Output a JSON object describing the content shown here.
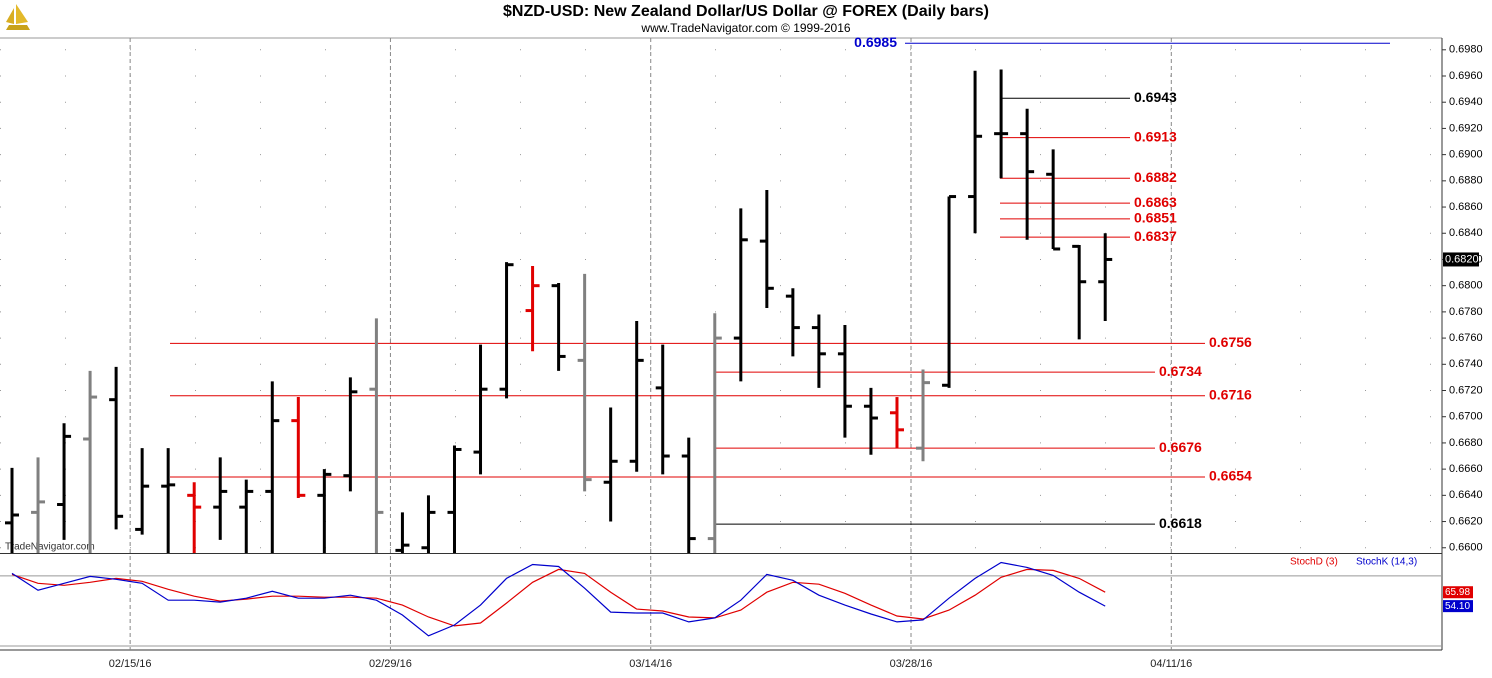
{
  "header": {
    "title": "$NZD-USD:  New Zealand Dollar/US Dollar @ FOREX  (Daily bars)",
    "subtitle": "www.TradeNavigator.com © 1999-2016",
    "watermark": "TradeNavigator.com"
  },
  "chart_data": [
    {
      "type": "ohlc",
      "xlim": [
        0,
        55.4
      ],
      "xticks": [
        {
          "value": 5,
          "label": "02/15/16"
        },
        {
          "value": 15,
          "label": "02/29/16"
        },
        {
          "value": 25,
          "label": "03/14/16"
        },
        {
          "value": 35,
          "label": "03/28/16"
        },
        {
          "value": 45,
          "label": "04/11/16"
        }
      ],
      "ylim": [
        0.6596,
        0.6989
      ],
      "yticks": [
        {
          "value": 0.66,
          "label": "0.6600"
        },
        {
          "value": 0.662,
          "label": "0.6620"
        },
        {
          "value": 0.664,
          "label": "0.6640"
        },
        {
          "value": 0.666,
          "label": "0.6660"
        },
        {
          "value": 0.668,
          "label": "0.6680"
        },
        {
          "value": 0.67,
          "label": "0.6700"
        },
        {
          "value": 0.672,
          "label": "0.6720"
        },
        {
          "value": 0.674,
          "label": "0.6740"
        },
        {
          "value": 0.676,
          "label": "0.6760"
        },
        {
          "value": 0.678,
          "label": "0.6780"
        },
        {
          "value": 0.68,
          "label": "0.6800"
        },
        {
          "value": 0.682,
          "label": "0.6820"
        },
        {
          "value": 0.684,
          "label": "0.6840"
        },
        {
          "value": 0.686,
          "label": "0.6860"
        },
        {
          "value": 0.688,
          "label": "0.6880"
        },
        {
          "value": 0.69,
          "label": "0.6900"
        },
        {
          "value": 0.692,
          "label": "0.6920"
        },
        {
          "value": 0.694,
          "label": "0.6940"
        },
        {
          "value": 0.696,
          "label": "0.6960"
        },
        {
          "value": 0.698,
          "label": "0.6980"
        }
      ],
      "grid": true,
      "open": [
        0.6619,
        0.6627,
        0.6633,
        0.6683,
        0.6713,
        0.6614,
        0.6647,
        0.664,
        0.6631,
        0.6631,
        0.6643,
        0.6697,
        0.664,
        0.6655,
        0.6721,
        0.6598,
        0.66,
        0.6627,
        0.6673,
        0.6721,
        0.6781,
        0.68,
        0.6743,
        0.665,
        0.6666,
        0.6722,
        0.667,
        0.6607,
        0.676,
        0.6834,
        0.6792,
        0.6768,
        0.6748,
        0.6708,
        0.6703,
        0.6676,
        0.6724,
        0.6868,
        0.6916,
        0.6916,
        0.6885,
        0.683,
        0.6803
      ],
      "high": [
        0.6661,
        0.6669,
        0.6695,
        0.6735,
        0.6738,
        0.6676,
        0.6676,
        0.665,
        0.6669,
        0.6652,
        0.6727,
        0.6715,
        0.666,
        0.673,
        0.6775,
        0.6627,
        0.664,
        0.6678,
        0.6755,
        0.6818,
        0.6815,
        0.6802,
        0.6809,
        0.6707,
        0.6773,
        0.6755,
        0.6684,
        0.6779,
        0.6859,
        0.6873,
        0.6798,
        0.6778,
        0.677,
        0.6722,
        0.6715,
        0.6736,
        0.6868,
        0.6964,
        0.6965,
        0.6935,
        0.6904,
        0.6831,
        0.684
      ],
      "low": [
        0.6596,
        0.6596,
        0.6606,
        0.6596,
        0.6614,
        0.661,
        0.6596,
        0.6596,
        0.6606,
        0.6596,
        0.6596,
        0.6638,
        0.6596,
        0.6643,
        0.6596,
        0.6596,
        0.6596,
        0.6596,
        0.6656,
        0.6714,
        0.675,
        0.6735,
        0.6643,
        0.662,
        0.6658,
        0.6656,
        0.6596,
        0.6596,
        0.6727,
        0.6783,
        0.6746,
        0.6722,
        0.6684,
        0.6671,
        0.6676,
        0.6666,
        0.6722,
        0.684,
        0.6882,
        0.6835,
        0.6828,
        0.6759,
        0.6773
      ],
      "close": [
        0.6625,
        0.6635,
        0.6685,
        0.6715,
        0.6624,
        0.6647,
        0.6648,
        0.6631,
        0.6643,
        0.6643,
        0.6697,
        0.664,
        0.6656,
        0.6719,
        0.6627,
        0.6602,
        0.6627,
        0.6675,
        0.6721,
        0.6816,
        0.68,
        0.6746,
        0.6652,
        0.6666,
        0.6743,
        0.667,
        0.6607,
        0.676,
        0.6835,
        0.6798,
        0.6768,
        0.6748,
        0.6708,
        0.6699,
        0.669,
        0.6726,
        0.6868,
        0.6914,
        0.6916,
        0.6887,
        0.6828,
        0.6803,
        0.682
      ],
      "colors": [
        "#000000",
        "#808080",
        "#000000",
        "#808080",
        "#000000",
        "#000000",
        "#000000",
        "#e00000",
        "#000000",
        "#000000",
        "#000000",
        "#e00000",
        "#000000",
        "#000000",
        "#808080",
        "#000000",
        "#000000",
        "#000000",
        "#000000",
        "#000000",
        "#e00000",
        "#000000",
        "#808080",
        "#000000",
        "#000000",
        "#000000",
        "#000000",
        "#808080",
        "#000000",
        "#000000",
        "#000000",
        "#000000",
        "#000000",
        "#000000",
        "#e00000",
        "#808080",
        "#000000",
        "#000000",
        "#000000",
        "#000000",
        "#000000",
        "#000000",
        "#000000"
      ],
      "last_label": "0.6820",
      "levels": [
        {
          "value": 0.6985,
          "color": "#0000cc"
        },
        {
          "value": 0.6943,
          "color": "#000000"
        },
        {
          "value": 0.6913,
          "color": "#e00000"
        },
        {
          "value": 0.6882,
          "color": "#e00000"
        },
        {
          "value": 0.6863,
          "color": "#e00000"
        },
        {
          "value": 0.6851,
          "color": "#e00000"
        },
        {
          "value": 0.6837,
          "color": "#e00000"
        },
        {
          "value": 0.6756,
          "color": "#e00000"
        },
        {
          "value": 0.6734,
          "color": "#e00000"
        },
        {
          "value": 0.6716,
          "color": "#e00000"
        },
        {
          "value": 0.6676,
          "color": "#e00000"
        },
        {
          "value": 0.6654,
          "color": "#e00000"
        },
        {
          "value": 0.6618,
          "color": "#000000"
        }
      ]
    },
    {
      "type": "line",
      "ylim": [
        16.6,
        97.8
      ],
      "levels": [
        80,
        20
      ],
      "series": [
        {
          "name": "StochD (3)",
          "color": "#e00000",
          "values": [
            81.2,
            73.6,
            71.9,
            74.5,
            77.8,
            75.3,
            68.5,
            62.6,
            58.4,
            60.1,
            62.6,
            62.6,
            61.7,
            61.7,
            60.9,
            55.0,
            44.8,
            37.2,
            39.7,
            56.7,
            74.5,
            85.5,
            82.1,
            66.0,
            51.6,
            49.9,
            44.8,
            44.0,
            50.7,
            66.0,
            74.5,
            72.8,
            65.1,
            55.0,
            45.7,
            43.1,
            50.7,
            63.4,
            78.7,
            85.5,
            84.6,
            77.8,
            65.98
          ]
        },
        {
          "name": "StochK (14,3)",
          "color": "#0000cc",
          "values": [
            82.1,
            67.7,
            73.6,
            79.5,
            77.0,
            73.6,
            59.2,
            59.2,
            57.5,
            60.9,
            66.8,
            60.9,
            60.9,
            63.4,
            59.2,
            46.5,
            28.7,
            38.0,
            55.0,
            77.8,
            89.7,
            88.0,
            69.4,
            49.0,
            48.2,
            48.2,
            40.6,
            44.0,
            59.2,
            81.2,
            76.2,
            63.4,
            55.0,
            47.4,
            40.6,
            42.3,
            60.9,
            77.8,
            91.4,
            87.2,
            80.4,
            66.0,
            54.1
          ],
          "value_labels": [
            null,
            null,
            null,
            null,
            null,
            null,
            null,
            null,
            null,
            null,
            null,
            null,
            null,
            null,
            null,
            null,
            null,
            null,
            null,
            null,
            null,
            null,
            null,
            null,
            null,
            null,
            null,
            null,
            null,
            null,
            null,
            null,
            null,
            null,
            null,
            null,
            null,
            null,
            null,
            null,
            null,
            null,
            "54.10"
          ]
        }
      ]
    }
  ]
}
